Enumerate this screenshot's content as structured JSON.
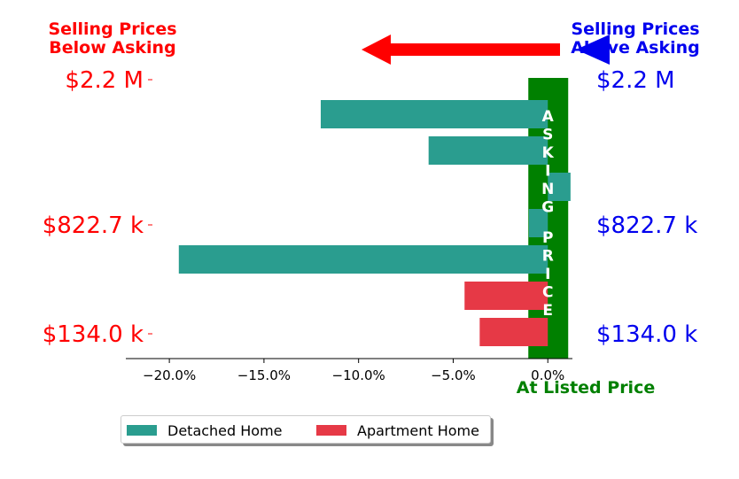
{
  "chart_data": {
    "type": "bar",
    "orientation": "horizontal",
    "x_axis": {
      "lim": [
        -22.3,
        1.3
      ],
      "ticks": [
        -20,
        -15,
        -10,
        -5,
        0
      ],
      "tick_labels": [
        "−20.0%",
        "−15.0%",
        "−10.0%",
        "−5.0%",
        "0.0%"
      ]
    },
    "left_axis_labels": [
      "$2.2 M",
      "$822.7 k",
      "$134.0 k"
    ],
    "right_axis_labels": [
      "$2.2 M",
      "$822.7 k",
      "$134.0 k"
    ],
    "bars": [
      {
        "series": "Detached Home",
        "value": -12.0
      },
      {
        "series": "Detached Home",
        "value": -6.3
      },
      {
        "series": "Detached Home",
        "value": 1.2
      },
      {
        "series": "Detached Home",
        "value": -1.0
      },
      {
        "series": "Detached Home",
        "value": -19.5
      },
      {
        "series": "Apartment Home",
        "value": -4.4
      },
      {
        "series": "Apartment Home",
        "value": -3.6
      }
    ],
    "series": [
      {
        "name": "Detached Home",
        "color": "#2a9d8f"
      },
      {
        "name": "Apartment Home",
        "color": "#e63946"
      }
    ],
    "annotations": {
      "below_asking": "Selling Prices\nBelow Asking",
      "above_asking": "Selling Prices\nAbove Asking",
      "asking_price_band": "ASKING PRICE",
      "at_listed_price": "At Listed Price"
    },
    "colors": {
      "below": "#ff0000",
      "above": "#0000ee",
      "asking_band": "#008000"
    },
    "legend_position": "bottom-left",
    "grid": false
  }
}
